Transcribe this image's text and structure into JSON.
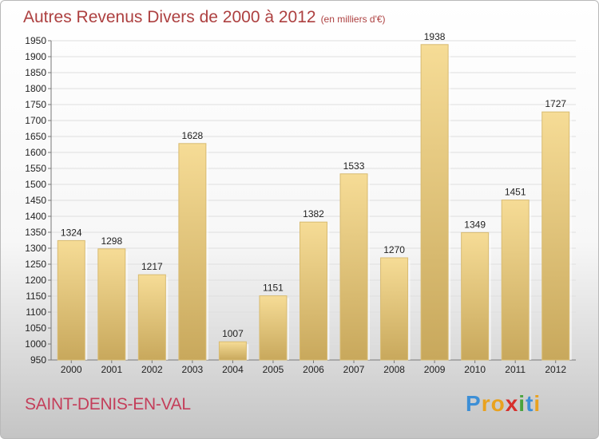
{
  "chart_data": {
    "type": "bar",
    "title": "Autres Revenus Divers de 2000 à 2012",
    "subtitle": "(en milliers d'€)",
    "categories": [
      "2000",
      "2001",
      "2002",
      "2003",
      "2004",
      "2005",
      "2006",
      "2007",
      "2008",
      "2009",
      "2010",
      "2011",
      "2012"
    ],
    "values": [
      1324,
      1298,
      1217,
      1628,
      1007,
      1151,
      1382,
      1533,
      1270,
      1938,
      1349,
      1451,
      1727
    ],
    "ylim": [
      950,
      1950
    ],
    "yticks": [
      950,
      1000,
      1050,
      1100,
      1150,
      1200,
      1250,
      1300,
      1350,
      1400,
      1450,
      1500,
      1550,
      1600,
      1650,
      1700,
      1750,
      1800,
      1850,
      1900,
      1950
    ],
    "grid": true,
    "bar_color": "#e3c67e"
  },
  "footer": {
    "location": "SAINT-DENIS-EN-VAL",
    "logo_text": "Proxiti"
  }
}
